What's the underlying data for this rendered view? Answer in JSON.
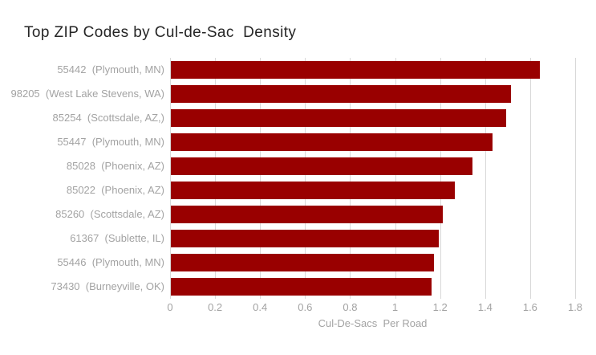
{
  "chart_data": {
    "type": "bar",
    "orientation": "horizontal",
    "title": "Top ZIP Codes by Cul-de-Sac  Density",
    "categories": [
      "55442  (Plymouth, MN)",
      "98205  (West Lake Stevens, WA)",
      "85254  (Scottsdale, AZ,)",
      "55447  (Plymouth, MN)",
      "85028  (Phoenix, AZ)",
      "85022  (Phoenix, AZ)",
      "85260  (Scottsdale, AZ)",
      "61367  (Sublette, IL)",
      "55446  (Plymouth, MN)",
      "73430  (Burneyville, OK)"
    ],
    "values": [
      1.64,
      1.51,
      1.49,
      1.43,
      1.34,
      1.26,
      1.21,
      1.19,
      1.17,
      1.16
    ],
    "xlabel": "Cul-De-Sacs  Per Road",
    "ylabel": "",
    "xlim": [
      0,
      1.8
    ],
    "xticks": [
      0,
      0.2,
      0.4,
      0.6,
      0.8,
      1,
      1.2,
      1.4,
      1.6,
      1.8
    ],
    "xtick_labels": [
      "0",
      "0.2",
      "0.4",
      "0.6",
      "0.8",
      "1",
      "1.2",
      "1.4",
      "1.6",
      "1.8"
    ],
    "grid": "vertical-gridlines-on",
    "legend": "none",
    "colors": {
      "bar": "#990000",
      "gridline": "#d9d9d9",
      "axis_text": "#a3a3a3",
      "title_text": "#262626",
      "background": "#ffffff"
    }
  }
}
